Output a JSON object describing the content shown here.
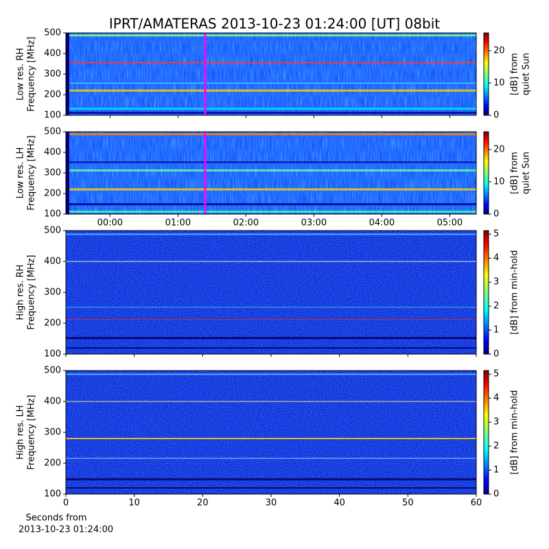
{
  "chart_data": [
    {
      "type": "heatmap",
      "title": "IPRT/AMATERAS 2013-10-23 01:24:00 [UT]   08bit",
      "ylabel": [
        "Low res. RH",
        "Frequency [MHz]"
      ],
      "ylim": [
        100,
        500
      ],
      "yticks": [
        100,
        200,
        300,
        400,
        500
      ],
      "xlim": [
        -0.65,
        5.39
      ],
      "marker_x": 1.4,
      "marker_color": "#ff00ff",
      "colorbar": {
        "label": [
          "[dB] from",
          "quiet Sun"
        ],
        "lim": [
          0,
          25.5
        ],
        "ticks": [
          0,
          10,
          20
        ],
        "colormap": "jet"
      }
    },
    {
      "type": "heatmap",
      "ylabel": [
        "Low res. LH",
        "Frequency [MHz]"
      ],
      "ylim": [
        100,
        500
      ],
      "yticks": [
        100,
        200,
        300,
        400,
        500
      ],
      "xlim": [
        -0.65,
        5.39
      ],
      "xticks": [
        {
          "value": 0,
          "label": "00:00"
        },
        {
          "value": 1,
          "label": "01:00"
        },
        {
          "value": 2,
          "label": "02:00"
        },
        {
          "value": 3,
          "label": "03:00"
        },
        {
          "value": 4,
          "label": "04:00"
        },
        {
          "value": 5,
          "label": "05:00"
        }
      ],
      "marker_x": 1.4,
      "marker_color": "#ff00ff",
      "colorbar": {
        "label": [
          "[dB] from",
          "quiet Sun"
        ],
        "lim": [
          0,
          25.5
        ],
        "ticks": [
          0,
          10,
          20
        ],
        "colormap": "jet"
      }
    },
    {
      "type": "heatmap",
      "ylabel": [
        "High res. RH",
        "Frequency [MHz]"
      ],
      "ylim": [
        100,
        500
      ],
      "yticks": [
        100,
        200,
        300,
        400,
        500
      ],
      "xlim": [
        0,
        60
      ],
      "colorbar": {
        "label": [
          "[dB] from min-hold"
        ],
        "lim": [
          0,
          5.15
        ],
        "ticks": [
          0,
          1,
          2,
          3,
          4,
          5
        ],
        "colormap": "jet"
      }
    },
    {
      "type": "heatmap",
      "ylabel": [
        "High res. LH",
        "Frequency [MHz]"
      ],
      "ylim": [
        100,
        500
      ],
      "yticks": [
        100,
        200,
        300,
        400,
        500
      ],
      "xlim": [
        0,
        60
      ],
      "xticks": [
        0,
        10,
        20,
        30,
        40,
        50,
        60
      ],
      "xlabel": [
        "Seconds from",
        "2013-10-23 01:24:00"
      ],
      "colorbar": {
        "label": [
          "[dB] from min-hold"
        ],
        "lim": [
          0,
          5.15
        ],
        "ticks": [
          0,
          1,
          2,
          3,
          4,
          5
        ],
        "colormap": "jet"
      }
    }
  ]
}
